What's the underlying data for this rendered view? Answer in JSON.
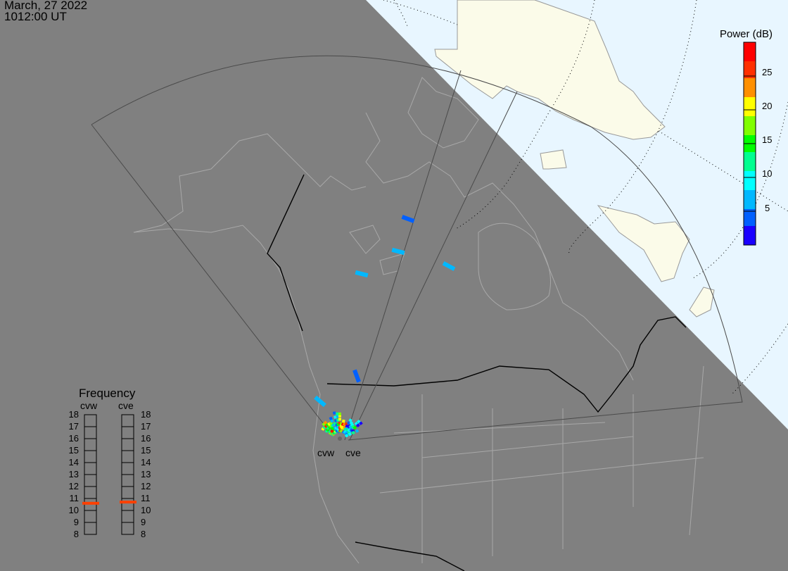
{
  "header": {
    "date": "March, 27 2022",
    "time": "1012:00 UT"
  },
  "colorbar": {
    "title": "Power (dB)",
    "range": [
      0,
      30
    ],
    "ticks": [
      "25",
      "20",
      "15",
      "10",
      "5"
    ],
    "colors": [
      "#1a00ff",
      "#0060ff",
      "#00b8ff",
      "#00ffff",
      "#00ff90",
      "#00ff00",
      "#80ff00",
      "#ffff00",
      "#ff9000",
      "#ff3000",
      "#ff0000"
    ]
  },
  "frequency": {
    "title": "Frequency",
    "scale": [
      "18",
      "17",
      "16",
      "15",
      "14",
      "13",
      "12",
      "11",
      "10",
      "9",
      "8"
    ],
    "radars": [
      {
        "name": "cvw",
        "freq_mhz": 10.6
      },
      {
        "name": "cve",
        "freq_mhz": 10.7
      }
    ],
    "marker_color": "#ff4000"
  },
  "map": {
    "radar_labels": [
      "cvw",
      "cve"
    ],
    "night_color": "#808080",
    "ocean_color": "#e8f6ff",
    "land_color": "#fbfbe9",
    "far_echo_powers": [
      4,
      6,
      7,
      6,
      5,
      6
    ]
  }
}
